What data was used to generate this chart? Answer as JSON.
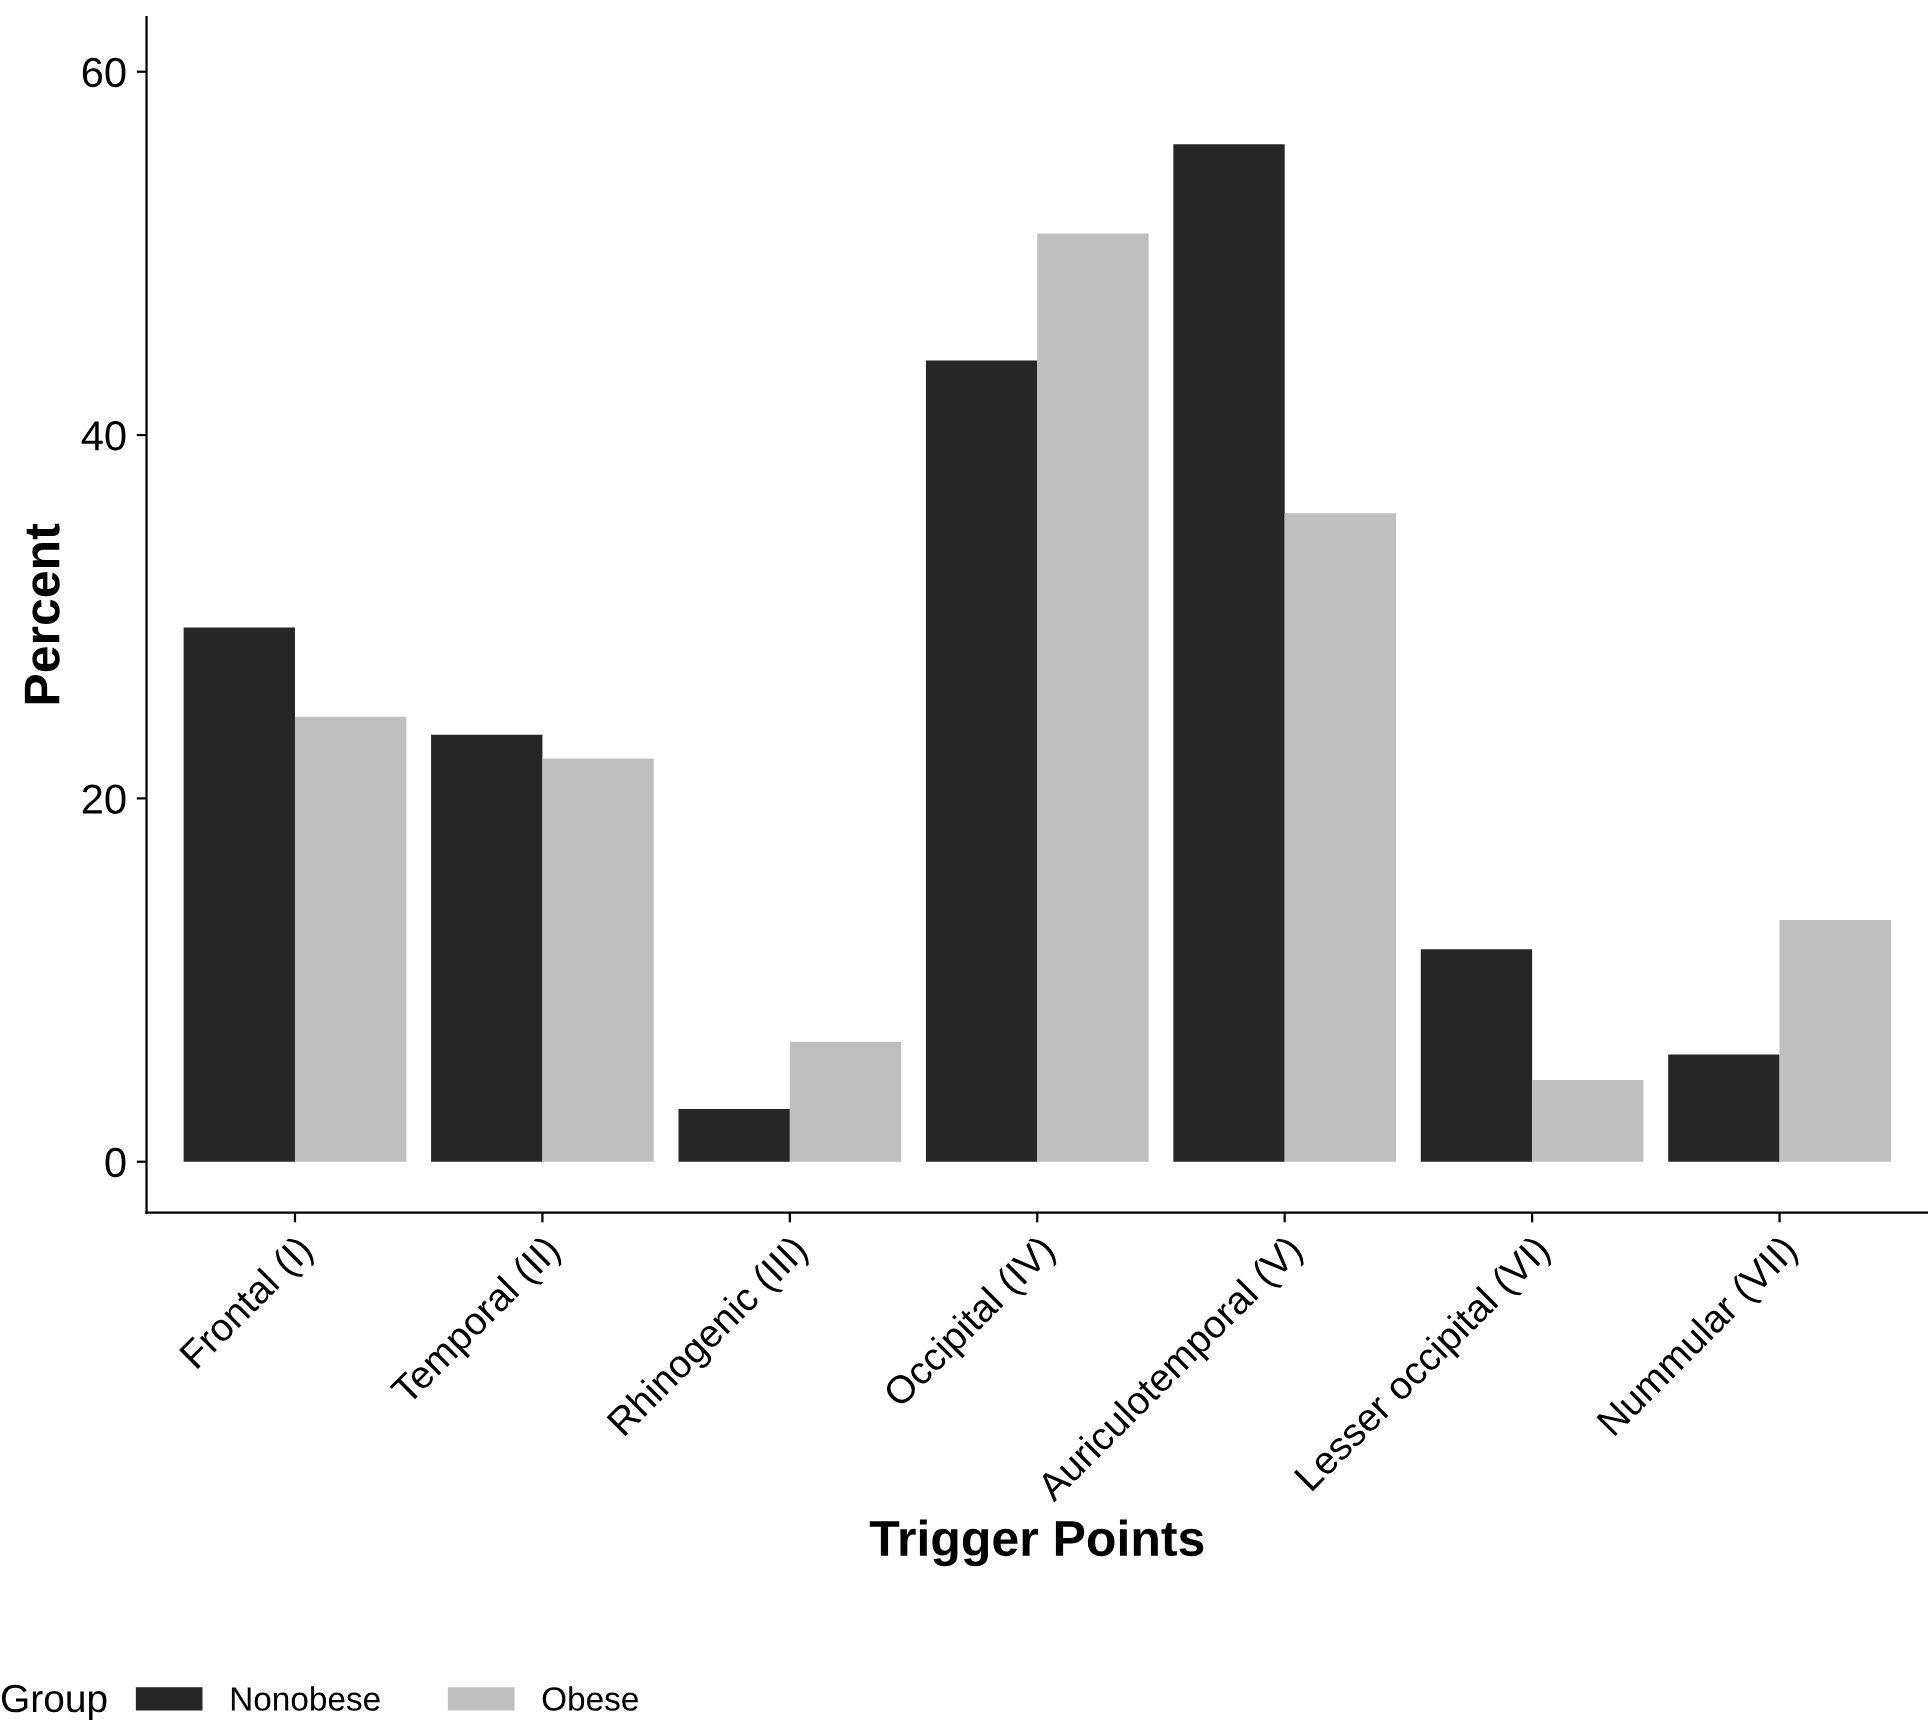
{
  "chart_data": {
    "type": "bar",
    "xlabel": "Trigger Points",
    "ylabel": "Percent",
    "legend_title": "Group",
    "legend": "bottom",
    "categories": [
      "Frontal (I)",
      "Temporal (II)",
      "Rhinogenic (III)",
      "Occipital (IV)",
      "Auriculotemporal (V)",
      "Lesser occipital (VI)",
      "Nummular (VII)"
    ],
    "series": [
      {
        "name": "Nonobese",
        "color": "#262626",
        "values": [
          29.4,
          23.5,
          2.9,
          44.1,
          56.0,
          11.7,
          5.9
        ]
      },
      {
        "name": "Obese",
        "color": "#bfbfbf",
        "values": [
          24.5,
          22.2,
          6.6,
          51.1,
          35.7,
          4.5,
          13.3
        ]
      }
    ],
    "ylim": [
      -2.8,
      63
    ],
    "yticks": [
      0,
      20,
      40,
      60
    ],
    "grid": false
  }
}
